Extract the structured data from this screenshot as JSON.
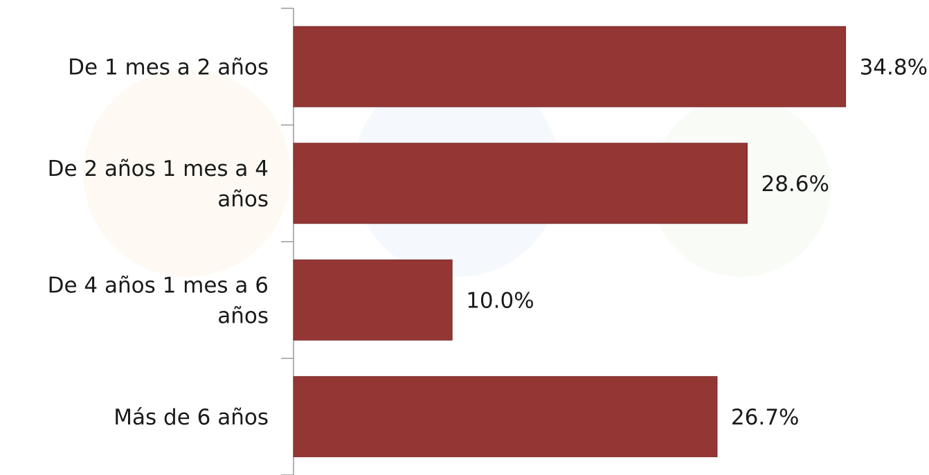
{
  "chart_data": {
    "type": "bar",
    "orientation": "horizontal",
    "categories": [
      [
        "De 1 mes a 2 años"
      ],
      [
        "De 2 años 1 mes a 4",
        "años"
      ],
      [
        "De 4 años 1 mes a 6",
        "años"
      ],
      [
        "Más de 6 años"
      ]
    ],
    "values": [
      34.8,
      28.6,
      10.0,
      26.7
    ],
    "data_labels": [
      "34.8%",
      "28.6%",
      "10.0%",
      "26.7%"
    ],
    "unit": "%",
    "xlim": [
      0,
      37
    ],
    "bar_color": "#943634",
    "axis_color": "#999999",
    "gridlines": false,
    "legend": "none"
  }
}
